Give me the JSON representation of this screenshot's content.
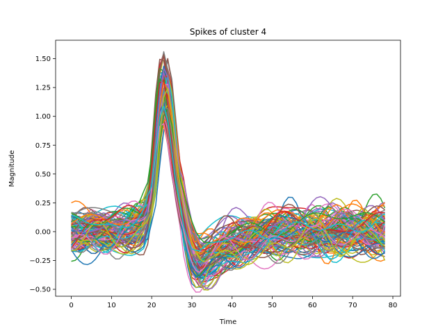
{
  "chart_data": {
    "type": "line",
    "title": "Spikes of cluster 4",
    "xlabel": "Time",
    "ylabel": "Magnitude",
    "xlim": [
      -3.9,
      81.9
    ],
    "ylim": [
      -0.56,
      1.66
    ],
    "xticks": [
      0,
      10,
      20,
      30,
      40,
      50,
      60,
      70,
      80
    ],
    "yticks": [
      -0.5,
      -0.25,
      0.0,
      0.25,
      0.5,
      0.75,
      1.0,
      1.25,
      1.5
    ],
    "ytick_labels": [
      "−0.50",
      "−0.25",
      "0.00",
      "0.25",
      "0.50",
      "0.75",
      "1.00",
      "1.25",
      "1.50"
    ],
    "grid": false,
    "legend": "none",
    "n_points": 79,
    "series_count": 110,
    "colors": [
      "#1f77b4",
      "#ff7f0e",
      "#2ca02c",
      "#d62728",
      "#9467bd",
      "#8c564b",
      "#e377c2",
      "#7f7f7f",
      "#bcbd22",
      "#17becf"
    ],
    "template_spike": {
      "x": [
        0,
        5,
        10,
        15,
        18,
        20,
        21,
        22,
        23,
        24,
        25,
        26,
        28,
        30,
        32,
        34,
        38,
        45,
        55,
        65,
        78
      ],
      "y": [
        0.0,
        0.0,
        0.0,
        0.02,
        0.08,
        0.3,
        0.7,
        1.1,
        1.3,
        1.2,
        0.9,
        0.55,
        0.1,
        -0.2,
        -0.3,
        -0.25,
        -0.15,
        -0.05,
        0.0,
        0.0,
        0.0
      ]
    }
  }
}
